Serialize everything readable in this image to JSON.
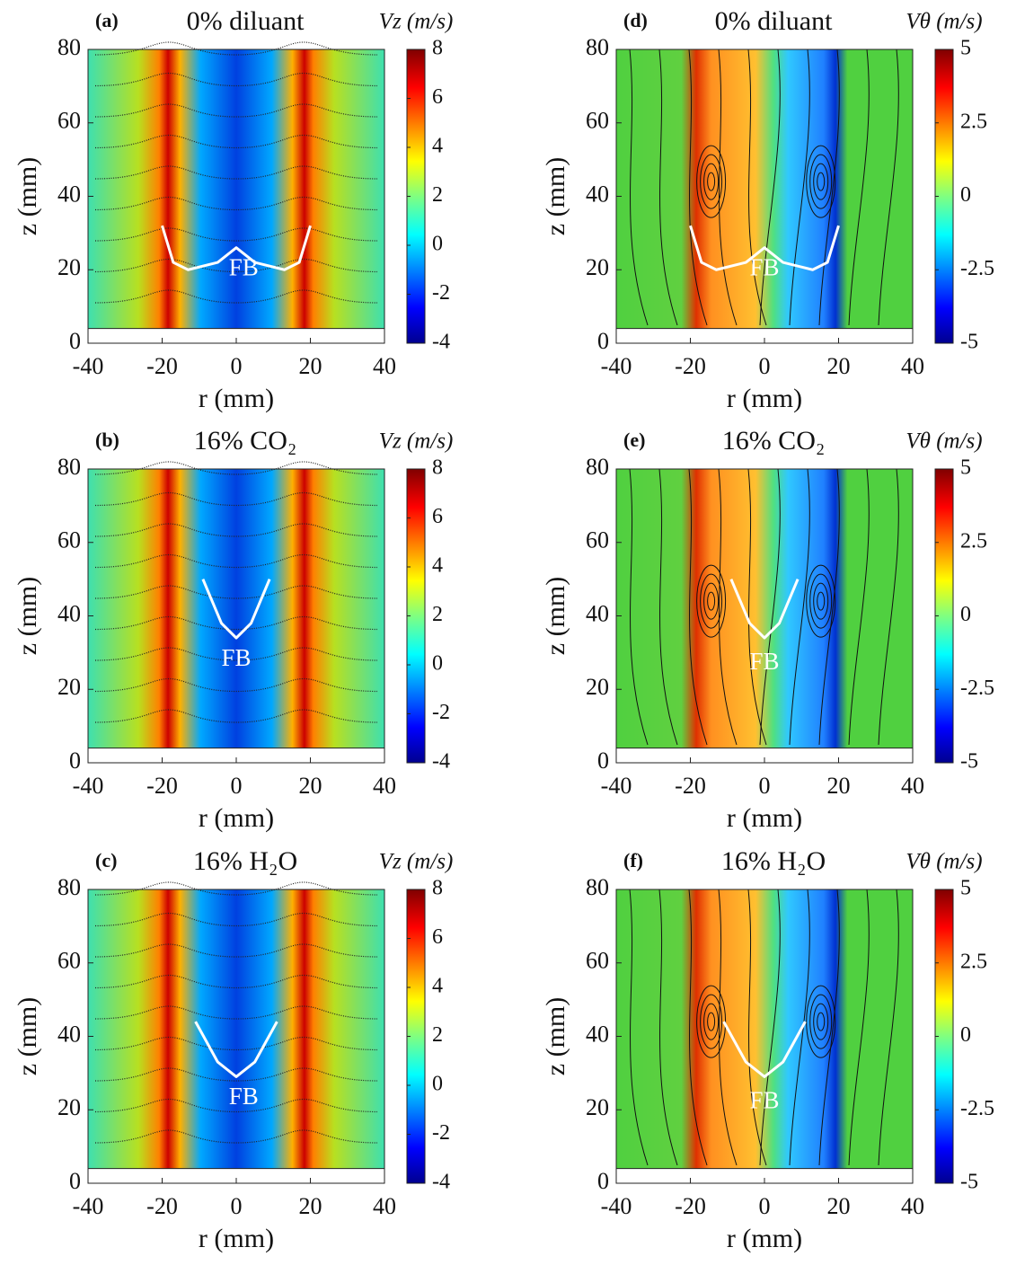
{
  "chart_data": [
    {
      "type": "heatmap",
      "field": "vz",
      "label": "(a)",
      "title": "0%  diluant",
      "colorbar_label": "Vz (m/s)",
      "xlabel": "r (mm)",
      "ylabel": "z (mm)",
      "annotation": "FB",
      "xlim": [
        -40,
        40
      ],
      "xticks": [
        -40,
        -20,
        0,
        20,
        40
      ],
      "ylim": [
        0,
        80
      ],
      "yticks": [
        0,
        20,
        40,
        60,
        80
      ],
      "clim": [
        -4,
        8
      ],
      "cticks": [
        -4,
        -2,
        0,
        2,
        4,
        6,
        8
      ]
    },
    {
      "type": "heatmap",
      "field": "vtheta",
      "label": "(d)",
      "title": "0%  diluant",
      "colorbar_label": "Vθ (m/s)",
      "xlabel": "r (mm)",
      "ylabel": "z (mm)",
      "annotation": "FB",
      "xlim": [
        -40,
        40
      ],
      "xticks": [
        -40,
        -20,
        0,
        20,
        40
      ],
      "ylim": [
        0,
        80
      ],
      "yticks": [
        0,
        20,
        40,
        60,
        80
      ],
      "clim": [
        -5,
        5
      ],
      "cticks": [
        -5,
        -2.5,
        0,
        2.5,
        5
      ]
    },
    {
      "type": "heatmap",
      "field": "vz",
      "label": "(b)",
      "title": "16% CO₂",
      "colorbar_label": "Vz (m/s)",
      "xlabel": "r (mm)",
      "ylabel": "z (mm)",
      "annotation": "FB",
      "xlim": [
        -40,
        40
      ],
      "xticks": [
        -40,
        -20,
        0,
        20,
        40
      ],
      "ylim": [
        0,
        80
      ],
      "yticks": [
        0,
        20,
        40,
        60,
        80
      ],
      "clim": [
        -4,
        8
      ],
      "cticks": [
        -4,
        -2,
        0,
        2,
        4,
        6,
        8
      ]
    },
    {
      "type": "heatmap",
      "field": "vtheta",
      "label": "(e)",
      "title": "16% CO₂",
      "colorbar_label": "Vθ (m/s)",
      "xlabel": "r (mm)",
      "ylabel": "z (mm)",
      "annotation": "FB",
      "xlim": [
        -40,
        40
      ],
      "xticks": [
        -40,
        -20,
        0,
        20,
        40
      ],
      "ylim": [
        0,
        80
      ],
      "yticks": [
        0,
        20,
        40,
        60,
        80
      ],
      "clim": [
        -5,
        5
      ],
      "cticks": [
        -5,
        -2.5,
        0,
        2.5,
        5
      ]
    },
    {
      "type": "heatmap",
      "field": "vz",
      "label": "(c)",
      "title": "16% H₂O",
      "colorbar_label": "Vz (m/s)",
      "xlabel": "r (mm)",
      "ylabel": "z (mm)",
      "annotation": "FB",
      "xlim": [
        -40,
        40
      ],
      "xticks": [
        -40,
        -20,
        0,
        20,
        40
      ],
      "ylim": [
        0,
        80
      ],
      "yticks": [
        0,
        20,
        40,
        60,
        80
      ],
      "clim": [
        -4,
        8
      ],
      "cticks": [
        -4,
        -2,
        0,
        2,
        4,
        6,
        8
      ]
    },
    {
      "type": "heatmap",
      "field": "vtheta",
      "label": "(f)",
      "title": "16% H₂O",
      "colorbar_label": "Vθ (m/s)",
      "xlabel": "r (mm)",
      "ylabel": "z (mm)",
      "annotation": "FB",
      "xlim": [
        -40,
        40
      ],
      "xticks": [
        -40,
        -20,
        0,
        20,
        40
      ],
      "ylim": [
        0,
        80
      ],
      "yticks": [
        0,
        20,
        40,
        60,
        80
      ],
      "clim": [
        -5,
        5
      ],
      "cticks": [
        -5,
        -2.5,
        0,
        2.5,
        5
      ]
    }
  ]
}
